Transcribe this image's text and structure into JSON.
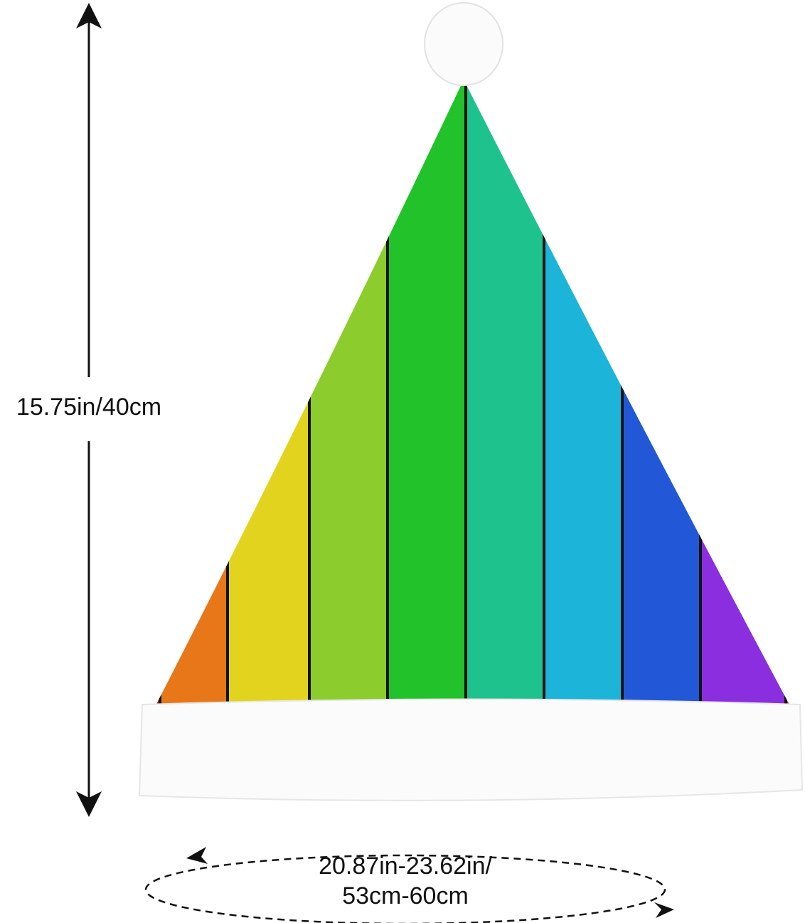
{
  "product": {
    "name": "Santa hat",
    "stripe_colors": [
      "#d8202a",
      "#e8771a",
      "#e2d41e",
      "#8ccc2c",
      "#22c22a",
      "#1ec28c",
      "#1cb4d8",
      "#2258d8",
      "#8a2ee0",
      "#d8203a"
    ],
    "cuff_color": "#ffffff",
    "pompom_color": "#ffffff"
  },
  "dimensions": {
    "height": "15.75in/40cm",
    "circumference_line1": "20.87in-23.62in/",
    "circumference_line2": "53cm-60cm"
  }
}
